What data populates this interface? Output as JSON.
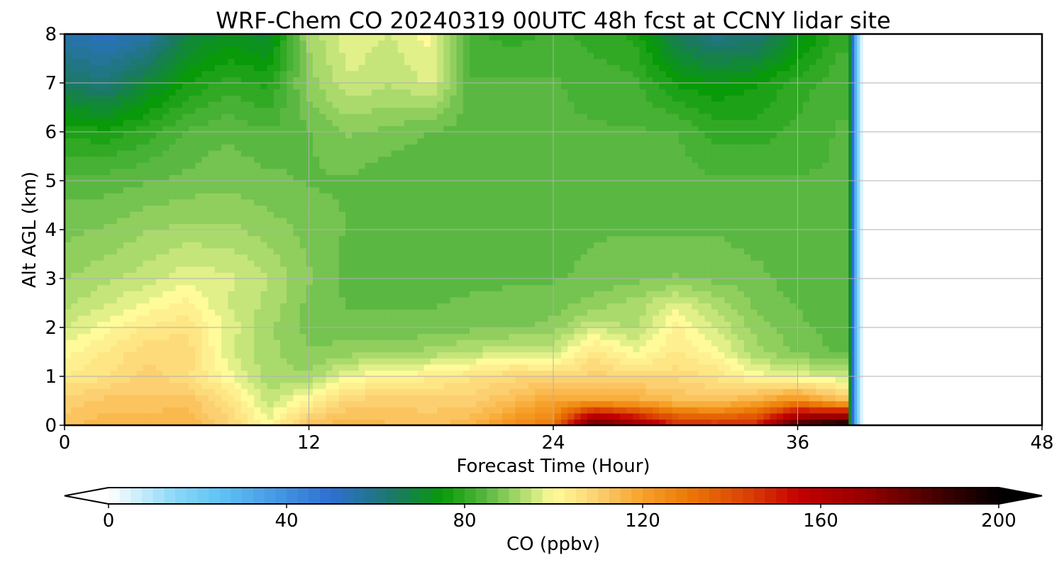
{
  "chart_data": {
    "type": "heatmap",
    "title": "WRF-Chem CO  20240319 00UTC 48h fcst at CCNY lidar site",
    "xlabel": "Forecast Time (Hour)",
    "ylabel": "Alt AGL (km)",
    "xlim": [
      0,
      48
    ],
    "ylim": [
      0,
      8
    ],
    "xticks": [
      0,
      12,
      24,
      36,
      48
    ],
    "yticks": [
      0,
      1,
      2,
      3,
      4,
      5,
      6,
      7,
      8
    ],
    "grid": true,
    "data_valid_until_hour": 38.5,
    "x_hours": [
      0,
      2,
      4,
      6,
      8,
      10,
      12,
      14,
      16,
      18,
      20,
      22,
      24,
      26,
      28,
      30,
      32,
      34,
      36,
      38
    ],
    "y_km": [
      0,
      0.5,
      1,
      1.5,
      2,
      2.5,
      3,
      4,
      5,
      6,
      7,
      8
    ],
    "values_ppbv": [
      [
        112,
        116,
        116,
        116,
        110,
        100,
        113,
        116,
        114,
        113,
        116,
        125,
        130,
        185,
        170,
        150,
        148,
        150,
        190,
        200
      ],
      [
        110,
        112,
        112,
        113,
        106,
        95,
        102,
        110,
        110,
        110,
        110,
        114,
        120,
        120,
        118,
        114,
        112,
        118,
        125,
        115
      ],
      [
        104,
        106,
        110,
        107,
        100,
        92,
        92,
        99,
        102,
        103,
        106,
        108,
        108,
        110,
        108,
        108,
        106,
        100,
        98,
        96
      ],
      [
        100,
        104,
        108,
        108,
        97,
        92,
        89,
        90,
        91,
        92,
        94,
        97,
        96,
        105,
        99,
        104,
        100,
        92,
        88,
        86
      ],
      [
        96,
        100,
        104,
        106,
        98,
        92,
        88,
        87,
        87,
        87,
        88,
        88,
        90,
        96,
        93,
        102,
        96,
        90,
        87,
        85
      ],
      [
        93,
        96,
        99,
        102,
        96,
        93,
        88,
        86,
        86,
        86,
        87,
        87,
        87,
        90,
        92,
        97,
        93,
        88,
        86,
        84
      ],
      [
        91,
        93,
        95,
        98,
        97,
        94,
        89,
        85,
        85,
        84,
        85,
        86,
        86,
        87,
        88,
        89,
        88,
        87,
        85,
        84
      ],
      [
        88,
        89,
        91,
        92,
        92,
        90,
        88,
        86,
        84,
        84,
        84,
        84,
        85,
        86,
        86,
        86,
        86,
        85,
        85,
        84
      ],
      [
        85,
        85,
        86,
        87,
        88,
        87,
        86,
        86,
        84,
        84,
        84,
        85,
        85,
        86,
        85,
        85,
        84,
        84,
        84,
        84
      ],
      [
        78,
        77,
        80,
        84,
        86,
        84,
        86,
        89,
        88,
        86,
        85,
        84,
        84,
        84,
        84,
        84,
        80,
        80,
        82,
        84
      ],
      [
        65,
        62,
        70,
        76,
        80,
        78,
        90,
        96,
        94,
        97,
        84,
        84,
        84,
        83,
        82,
        76,
        74,
        76,
        80,
        83
      ],
      [
        55,
        52,
        55,
        68,
        72,
        70,
        92,
        98,
        96,
        100,
        82,
        80,
        82,
        80,
        78,
        66,
        60,
        62,
        72,
        80
      ]
    ],
    "colorbar": {
      "label": "CO  (ppbv)",
      "min": 0,
      "max": 200,
      "ticks": [
        0,
        40,
        80,
        120,
        160,
        200
      ],
      "extend": "both",
      "colormap": [
        [
          0,
          "#ffffff"
        ],
        [
          15,
          "#8ad8f8"
        ],
        [
          25,
          "#5fc3f5"
        ],
        [
          50,
          "#2e6fd2"
        ],
        [
          65,
          "#1a7a60"
        ],
        [
          75,
          "#089a08"
        ],
        [
          85,
          "#5ab842"
        ],
        [
          95,
          "#c5e57a"
        ],
        [
          100,
          "#fffb9a"
        ],
        [
          110,
          "#fcd070"
        ],
        [
          120,
          "#f7a12a"
        ],
        [
          130,
          "#ec7a06"
        ],
        [
          145,
          "#d83a04"
        ],
        [
          155,
          "#c40000"
        ],
        [
          170,
          "#960000"
        ],
        [
          185,
          "#4a0000"
        ],
        [
          200,
          "#000000"
        ]
      ]
    }
  }
}
